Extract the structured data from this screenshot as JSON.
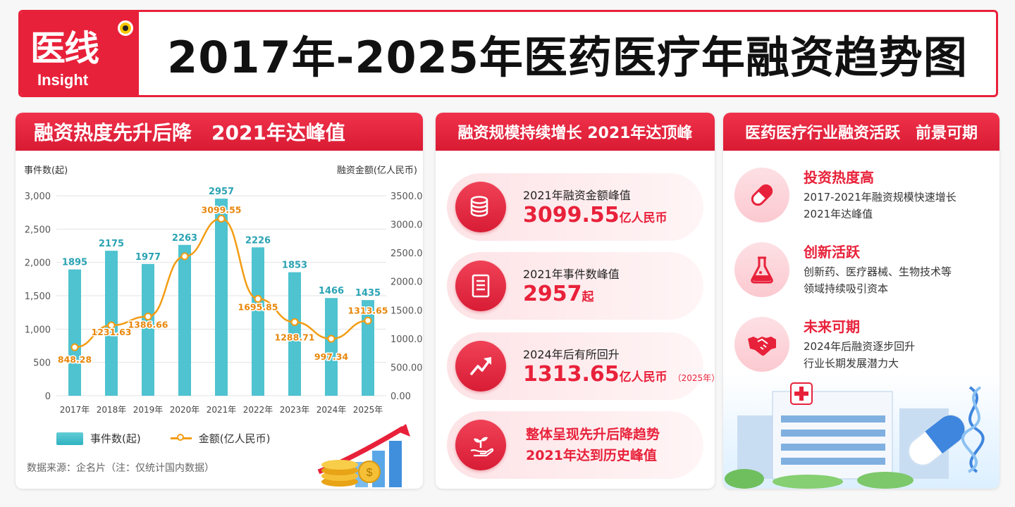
{
  "header": {
    "logo_cn": "医线",
    "logo_en": "Insight",
    "title": "2017年-2025年医药医疗年融资趋势图"
  },
  "left_panel": {
    "heading": "融资热度先升后降　2021年达峰值",
    "legend_bar": "事件数(起)",
    "legend_line": "金额(亿人民币)",
    "source": "数据来源：企名片（注：仅统计国内数据）"
  },
  "chart_data": {
    "type": "bar",
    "categories": [
      "2017年",
      "2018年",
      "2019年",
      "2020年",
      "2021年",
      "2022年",
      "2023年",
      "2024年",
      "2025年"
    ],
    "series": [
      {
        "name": "事件数(起)",
        "type": "bar",
        "axis": "left",
        "values": [
          1895,
          2175,
          1977,
          2263,
          2957,
          2226,
          1853,
          1466,
          1435
        ],
        "labels": [
          "1895",
          "2175",
          "1977",
          "2263",
          "2957",
          "2226",
          "1853",
          "1466",
          "1435"
        ]
      },
      {
        "name": "金额(亿人民币)",
        "type": "line",
        "axis": "right",
        "values": [
          848.28,
          1231.63,
          1386.66,
          2440,
          3099.55,
          1695.85,
          1288.71,
          997.34,
          1313.65
        ],
        "labels": [
          "848.28",
          "1231.63",
          "1386.66",
          "",
          "3099.55",
          "1695.85",
          "1288.71",
          "997.34",
          "1313.65"
        ]
      }
    ],
    "ylabel": "事件数(起)",
    "y2label": "融资金额(亿人民币)",
    "ylim": [
      0,
      3000
    ],
    "y2lim": [
      0,
      3500
    ],
    "yticks": [
      "0",
      "500",
      "1,000",
      "1,500",
      "2,000",
      "2,500",
      "3,000"
    ],
    "y2ticks": [
      "0.00",
      "500.00",
      "1000.00",
      "1500.00",
      "2000.00",
      "2500.00",
      "3000.00",
      "3500.00"
    ],
    "grid": true,
    "legend": "bottom-left",
    "colors": {
      "bar": "#3cbccb",
      "line": "#f39c12"
    }
  },
  "mid_panel": {
    "heading": "融资规模持续增长 2021年达顶峰",
    "cards": [
      {
        "label": "2021年融资金额峰值",
        "value": "3099.55",
        "unit": "亿人民币",
        "icon": "coins-icon"
      },
      {
        "label": "2021年事件数峰值",
        "value": "2957",
        "unit": "起",
        "icon": "document-icon"
      },
      {
        "label": "2024年后有所回升",
        "value": "1313.65",
        "unit": "亿人民币",
        "note": "（2025年）",
        "icon": "trend-up-icon"
      }
    ],
    "summary": {
      "line1": "整体呈现先升后降趋势",
      "line2": "2021年达到历史峰值",
      "icon": "plant-hand-icon"
    }
  },
  "right_panel": {
    "heading": "医药医疗行业融资活跃　前景可期",
    "items": [
      {
        "title": "投资热度高",
        "desc": "2017-2021年融资规模快速增长\n2021年达峰值",
        "icon": "capsule-icon"
      },
      {
        "title": "创新活跃",
        "desc": "创新药、医疗器械、生物技术等\n领域持续吸引资本",
        "icon": "flask-icon"
      },
      {
        "title": "未来可期",
        "desc": "2024年后融资逐步回升\n行业长期发展潜力大",
        "icon": "handshake-icon"
      }
    ]
  },
  "colors": {
    "brand_red": "#e8213a",
    "teal": "#3cbccb",
    "orange": "#f39c12"
  }
}
